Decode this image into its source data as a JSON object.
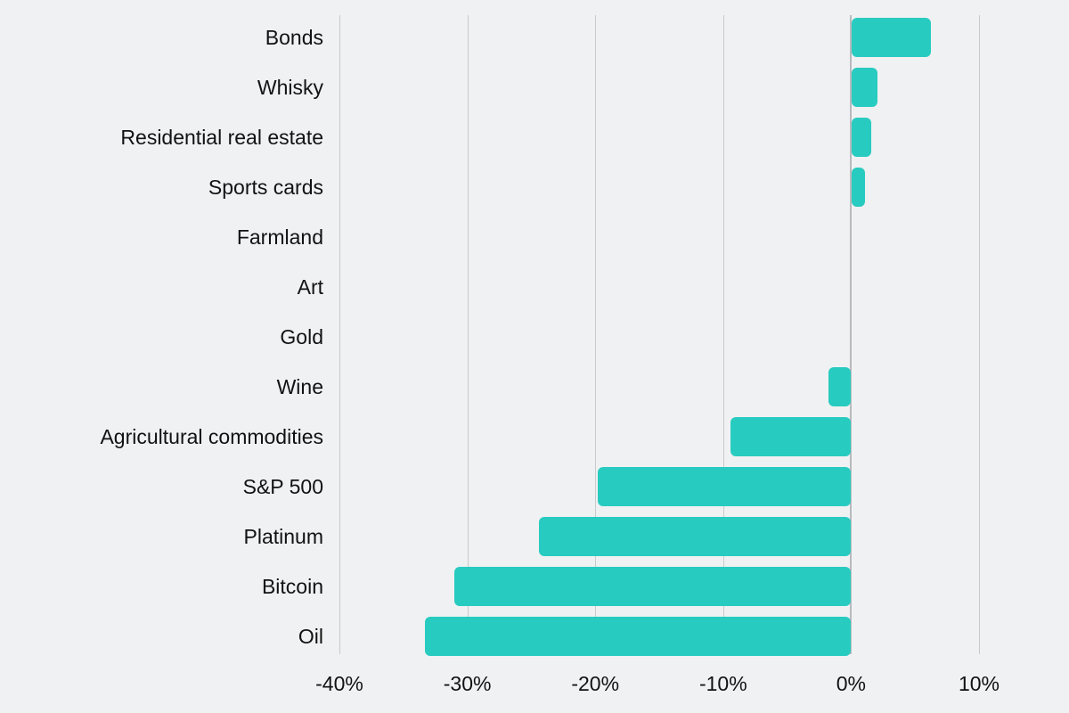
{
  "chart_data": {
    "type": "bar",
    "orientation": "horizontal",
    "title": "",
    "xlabel": "",
    "ylabel": "",
    "categories": [
      "Bonds",
      "Whisky",
      "Residential real estate",
      "Sports cards",
      "Farmland",
      "Art",
      "Gold",
      "Wine",
      "Agricultural commodities",
      "S&P 500",
      "Platinum",
      "Bitcoin",
      "Oil"
    ],
    "values": [
      6.2,
      2,
      1.5,
      1,
      0,
      0,
      0,
      -1.8,
      -9.4,
      -19.8,
      -24.4,
      -31,
      -33.3
    ],
    "value_unit": "%",
    "xlim": [
      -40,
      10
    ],
    "xticks": [
      -40,
      -30,
      -20,
      -10,
      0,
      10
    ],
    "xtick_labels": [
      "-40%",
      "-30%",
      "-20%",
      "-10%",
      "0%",
      "10%"
    ],
    "grid": "vertical-only",
    "legend": "none",
    "colors": {
      "bar": "#28cbc0",
      "background": "#f0f1f3",
      "gridline": "#c9cacc",
      "zero_line": "#b9babd",
      "text": "#121212"
    }
  }
}
